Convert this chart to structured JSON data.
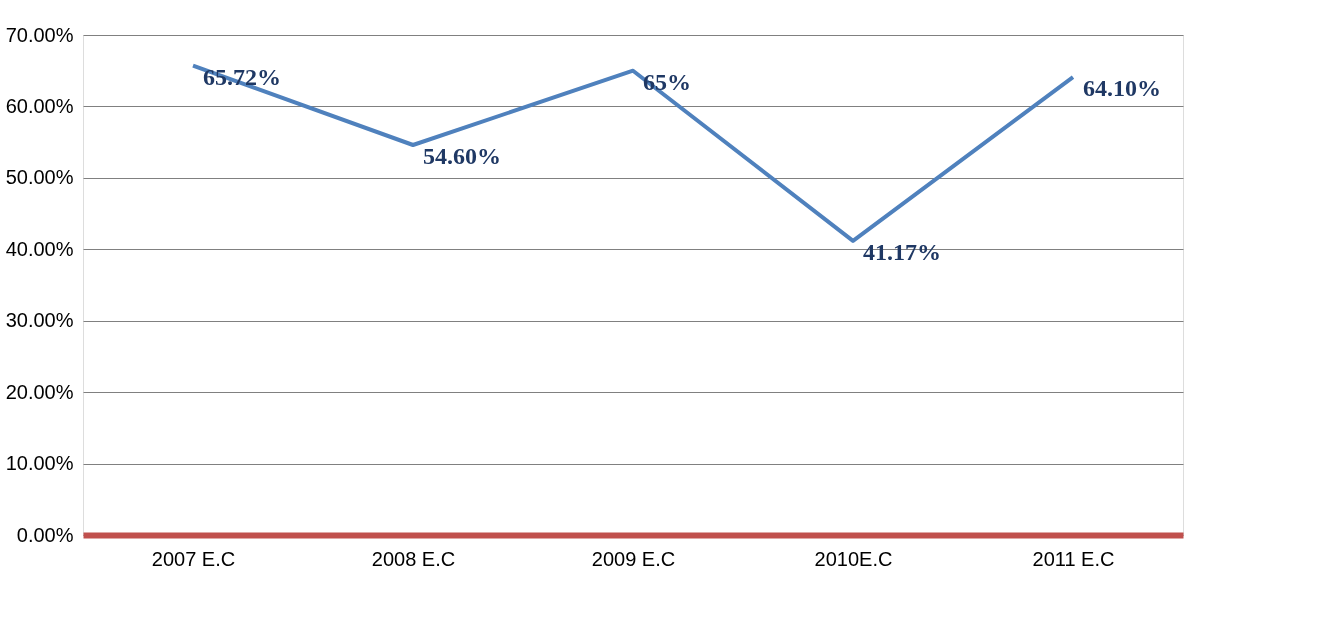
{
  "chart_data": {
    "type": "line",
    "categories": [
      "2007 E.C",
      "2008 E.C",
      "2009 E.C",
      "2010E.C",
      "2011 E.C"
    ],
    "series": [
      {
        "color": "#4f81bd",
        "values": [
          65.72,
          54.6,
          65,
          41.17,
          64.1
        ]
      }
    ],
    "value_labels": [
      "65.72%",
      "54.60%",
      "65%",
      "41.17%",
      "64.10%"
    ],
    "ylim": [
      0,
      70
    ],
    "yticks": [
      {
        "value": 0,
        "label": "0.00%"
      },
      {
        "value": 10,
        "label": "10.00%"
      },
      {
        "value": 20,
        "label": "20.00%"
      },
      {
        "value": 30,
        "label": "30.00%"
      },
      {
        "value": 40,
        "label": "40.00%"
      },
      {
        "value": 50,
        "label": "50.00%"
      },
      {
        "value": 60,
        "label": "60.00%"
      },
      {
        "value": 70,
        "label": "70.00%"
      }
    ],
    "grid": "y",
    "marker": "none",
    "line_style": "solid"
  }
}
